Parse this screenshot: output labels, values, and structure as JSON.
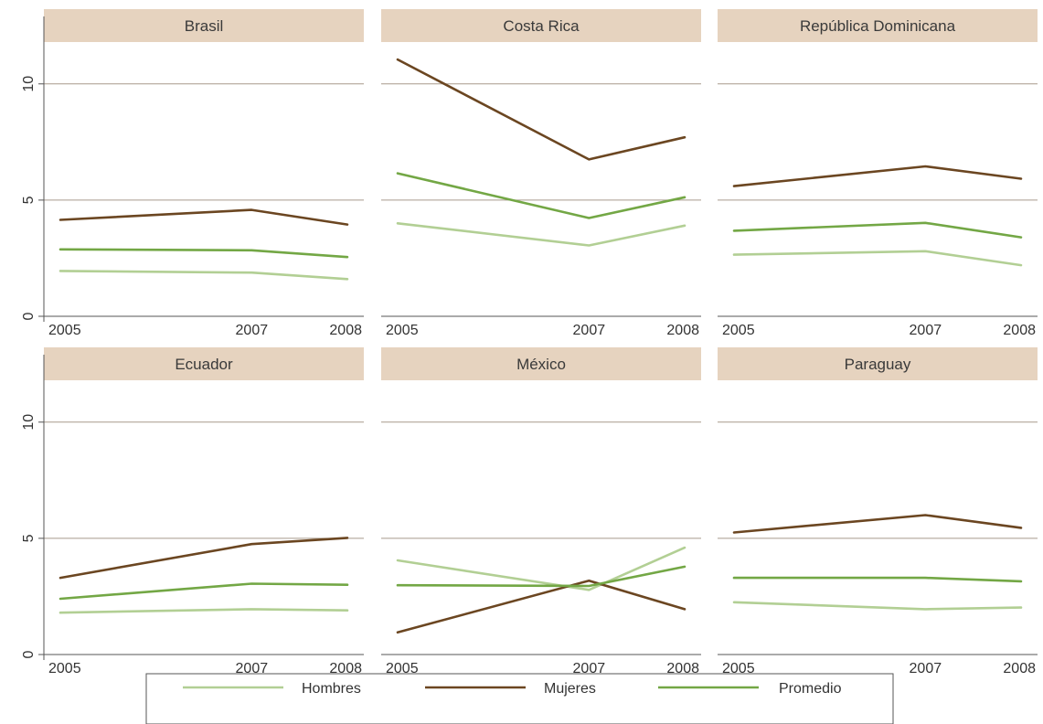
{
  "chart_data": {
    "type": "line",
    "x": [
      2005,
      2007,
      2008
    ],
    "x_tick_labels": [
      "2005",
      "2007",
      "2008"
    ],
    "y_ticks": [
      0,
      5,
      10
    ],
    "y_tick_labels": [
      "0",
      "5",
      "10"
    ],
    "ylim": [
      0,
      11.8
    ],
    "grid": true,
    "legend_position": "bottom",
    "colors": {
      "Hombres": "#b2cf94",
      "Mujeres": "#6b4621",
      "Promedio": "#73a745",
      "panel_header": "#e6d3bf",
      "grid": "#a89a8c"
    },
    "legend": [
      {
        "name": "Hombres"
      },
      {
        "name": "Mujeres"
      },
      {
        "name": "Promedio"
      }
    ],
    "panels": [
      {
        "title": "Brasil",
        "series": [
          {
            "name": "Hombres",
            "values": [
              1.95,
              1.88,
              1.6
            ]
          },
          {
            "name": "Mujeres",
            "values": [
              4.15,
              4.58,
              3.95
            ]
          },
          {
            "name": "Promedio",
            "values": [
              2.88,
              2.84,
              2.55
            ]
          }
        ]
      },
      {
        "title": "Costa Rica",
        "series": [
          {
            "name": "Hombres",
            "values": [
              4.0,
              3.05,
              3.9
            ]
          },
          {
            "name": "Mujeres",
            "values": [
              11.05,
              6.75,
              7.7
            ]
          },
          {
            "name": "Promedio",
            "values": [
              6.15,
              4.23,
              5.12
            ]
          }
        ]
      },
      {
        "title": "República Dominicana",
        "series": [
          {
            "name": "Hombres",
            "values": [
              2.65,
              2.8,
              2.2
            ]
          },
          {
            "name": "Mujeres",
            "values": [
              5.6,
              6.45,
              5.92
            ]
          },
          {
            "name": "Promedio",
            "values": [
              3.68,
              4.02,
              3.4
            ]
          }
        ]
      },
      {
        "title": "Ecuador",
        "series": [
          {
            "name": "Hombres",
            "values": [
              1.8,
              1.95,
              1.9
            ]
          },
          {
            "name": "Mujeres",
            "values": [
              3.3,
              4.75,
              5.02
            ]
          },
          {
            "name": "Promedio",
            "values": [
              2.4,
              3.05,
              3.0
            ]
          }
        ]
      },
      {
        "title": "México",
        "series": [
          {
            "name": "Hombres",
            "values": [
              4.05,
              2.78,
              4.6
            ]
          },
          {
            "name": "Mujeres",
            "values": [
              0.95,
              3.18,
              1.95
            ]
          },
          {
            "name": "Promedio",
            "values": [
              2.98,
              2.95,
              3.78
            ]
          }
        ]
      },
      {
        "title": "Paraguay",
        "series": [
          {
            "name": "Hombres",
            "values": [
              2.25,
              1.95,
              2.02
            ]
          },
          {
            "name": "Mujeres",
            "values": [
              5.25,
              6.0,
              5.45
            ]
          },
          {
            "name": "Promedio",
            "values": [
              3.3,
              3.3,
              3.15
            ]
          }
        ]
      }
    ]
  }
}
